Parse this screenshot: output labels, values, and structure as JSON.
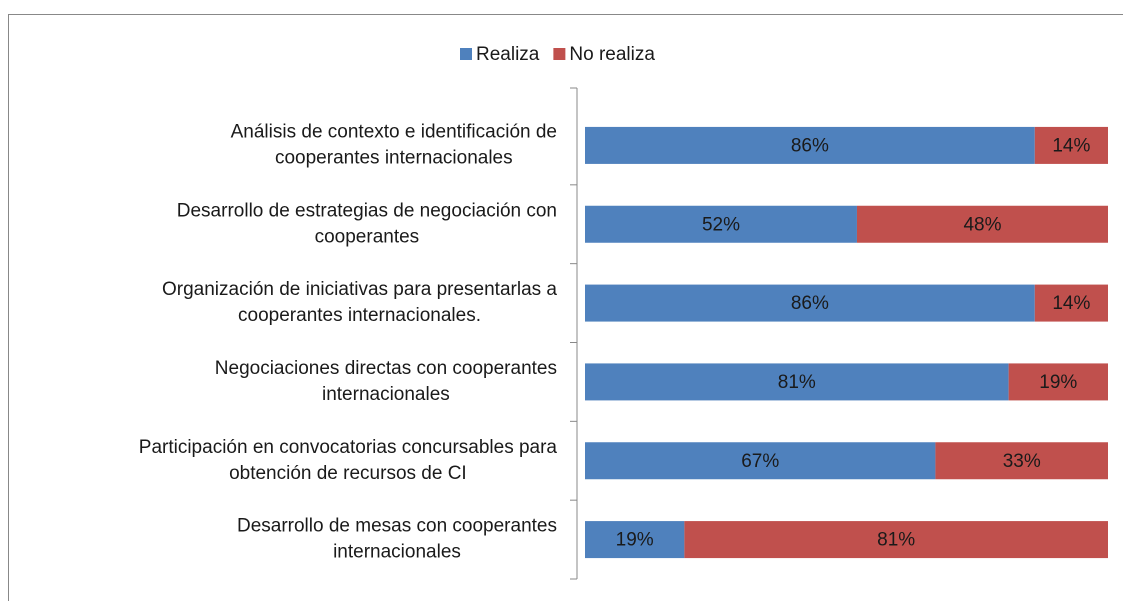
{
  "chart_data": {
    "type": "stacked_bar_horizontal",
    "categories": [
      [
        "Análisis de contexto e identificación de",
        "cooperantes internacionales"
      ],
      [
        "Desarrollo de estrategias de negociación con",
        "cooperantes"
      ],
      [
        "Organización de iniciativas para presentarlas a",
        "cooperantes internacionales."
      ],
      [
        "Negociaciones directas con cooperantes",
        "internacionales"
      ],
      [
        "Participación en convocatorias concursables para",
        "obtención de recursos de CI"
      ],
      [
        "Desarrollo de mesas con cooperantes",
        "internacionales"
      ]
    ],
    "series": [
      {
        "name": "Realiza",
        "color": "#4f81bd",
        "values": [
          86,
          52,
          86,
          81,
          67,
          19
        ],
        "value_labels": [
          "86%",
          "52%",
          "86%",
          "81%",
          "67%",
          "19%"
        ]
      },
      {
        "name": "No realiza",
        "color": "#c0504d",
        "values": [
          14,
          48,
          14,
          19,
          33,
          81
        ],
        "value_labels": [
          "14%",
          "48%",
          "14%",
          "19%",
          "33%",
          "81%"
        ]
      }
    ],
    "legend": "top"
  }
}
